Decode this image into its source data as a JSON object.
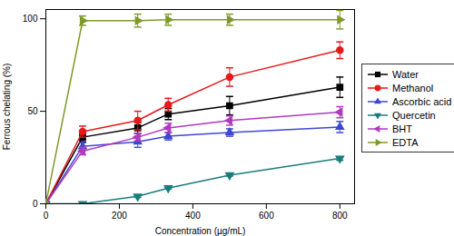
{
  "chart_data": {
    "type": "line",
    "x_label": "Concentration (µg/mL)",
    "y_label": "Ferrous chelating (%)",
    "x": [
      0,
      100,
      250,
      333,
      500,
      800
    ],
    "series": [
      {
        "name": "Water",
        "color": "#000000",
        "marker": "square",
        "values": [
          0,
          36,
          41,
          48.5,
          53,
          63
        ],
        "errors": [
          0,
          2.5,
          3,
          3,
          5,
          5.5
        ]
      },
      {
        "name": "Methanol",
        "color": "#e41a1c",
        "marker": "circle",
        "values": [
          0,
          39,
          45,
          53.5,
          68.5,
          83
        ],
        "errors": [
          0,
          3,
          5,
          3.5,
          5,
          4.5
        ]
      },
      {
        "name": "Ascorbic acid",
        "color": "#3f48cc",
        "marker": "triangle-up",
        "values": [
          0,
          31,
          33.5,
          36.5,
          38.5,
          41.5
        ],
        "errors": [
          0,
          2,
          3,
          2,
          2,
          3
        ]
      },
      {
        "name": "Quercetin",
        "color": "#1a7d7d",
        "marker": "triangle-down",
        "values": [
          0,
          0,
          4,
          8.5,
          15.5,
          24.5
        ],
        "errors": [
          0,
          0,
          0.5,
          0.5,
          0.5,
          1
        ]
      },
      {
        "name": "BHT",
        "color": "#b03ac0",
        "marker": "triangle-left",
        "values": [
          0,
          28.5,
          36,
          41,
          45,
          49.5
        ],
        "errors": [
          0,
          2,
          2,
          2.5,
          2.5,
          3
        ]
      },
      {
        "name": "EDTA",
        "color": "#7f9a2a",
        "marker": "triangle-right",
        "values": [
          0,
          99,
          99,
          99.5,
          99.5,
          99.5
        ],
        "errors": [
          0,
          2.5,
          3.5,
          3,
          3,
          5
        ]
      }
    ],
    "xlim": [
      0,
      840
    ],
    "xticks": [
      0,
      200,
      400,
      600,
      800
    ],
    "ylim": [
      0,
      105
    ],
    "yticks": [
      0,
      50,
      100
    ],
    "grid": false,
    "legend": "right"
  }
}
